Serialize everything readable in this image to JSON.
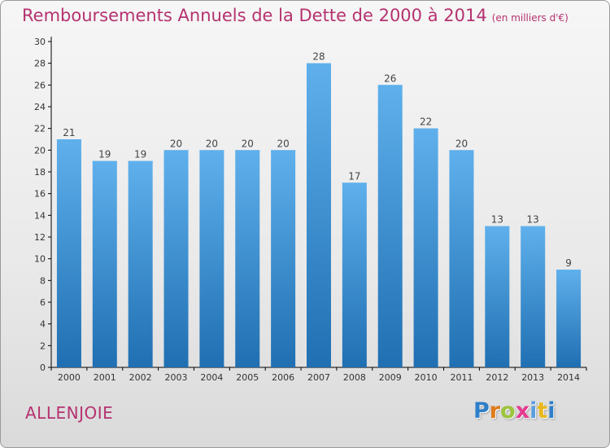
{
  "title": "Remboursements Annuels de la Dette de 2000 à 2014",
  "subtitle": "(en milliers d'€)",
  "commune": "ALLENJOIE",
  "brand": {
    "letters": [
      "P",
      "r",
      "o",
      "x",
      "i",
      "t",
      "i"
    ],
    "colors": [
      "#2f7ec8",
      "#e07a1a",
      "#9bc43c",
      "#e63a8f",
      "#5a9ee0",
      "#e8b81d",
      "#2f7ec8"
    ]
  },
  "colors": {
    "title": "#b5326f",
    "bar_light": "#5fb0ec",
    "bar_dark": "#1f6fb2",
    "axis": "#000000",
    "grid": "#bbbbbb"
  },
  "chart_data": {
    "type": "bar",
    "categories": [
      "2000",
      "2001",
      "2002",
      "2003",
      "2004",
      "2005",
      "2006",
      "2007",
      "2008",
      "2009",
      "2010",
      "2011",
      "2012",
      "2013",
      "2014"
    ],
    "values": [
      21,
      19,
      19,
      20,
      20,
      20,
      20,
      28,
      17,
      26,
      22,
      20,
      13,
      13,
      9
    ],
    "data_labels": [
      "21",
      "19",
      "19",
      "20",
      "20",
      "20",
      "20",
      "28",
      "17",
      "26",
      "22",
      "20",
      "13",
      "13",
      "9"
    ],
    "yticks": [
      "0",
      "2",
      "4",
      "6",
      "8",
      "10",
      "12",
      "14",
      "16",
      "18",
      "20",
      "22",
      "24",
      "26",
      "28",
      "30"
    ],
    "ylim": [
      0,
      30
    ],
    "xlabel": "",
    "ylabel": "",
    "grid": false,
    "legend": "none"
  }
}
